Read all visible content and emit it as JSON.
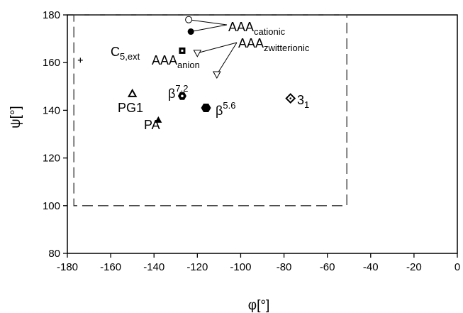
{
  "chart_data": {
    "type": "scatter",
    "xlabel": "φ[°]",
    "ylabel": "ψ[°]",
    "xlim": [
      -180,
      0
    ],
    "ylim": [
      80,
      180
    ],
    "x_ticks": [
      "-180",
      "-160",
      "-140",
      "-120",
      "-100",
      "-80",
      "-60",
      "-40",
      "-20",
      "0"
    ],
    "y_ticks": [
      "80",
      "100",
      "120",
      "140",
      "160",
      "180"
    ],
    "grid": false,
    "region": {
      "style": "dashed",
      "x": [
        -177,
        -51
      ],
      "y": [
        100,
        180
      ]
    },
    "points": [
      {
        "x": -124,
        "y": 178,
        "marker": "circle-open"
      },
      {
        "x": -123,
        "y": 173,
        "marker": "circle"
      },
      {
        "x": -127,
        "y": 165,
        "marker": "square-dot"
      },
      {
        "x": -120,
        "y": 164,
        "marker": "triangle-down-open"
      },
      {
        "x": -111,
        "y": 155,
        "marker": "triangle-down-open"
      },
      {
        "x": -150,
        "y": 147,
        "marker": "triangle-open"
      },
      {
        "x": -127,
        "y": 146,
        "marker": "hexagon-dot"
      },
      {
        "x": -116,
        "y": 141,
        "marker": "hexagon"
      },
      {
        "x": -77,
        "y": 145,
        "marker": "diamond-dot"
      },
      {
        "x": -138,
        "y": 136,
        "marker": "triangle"
      },
      {
        "x": -174,
        "y": 161,
        "marker": "plus"
      }
    ],
    "labels": [
      {
        "main": "AAA",
        "sub": "cationic"
      },
      {
        "main": "AAA",
        "sub": "zwitterionic"
      },
      {
        "main": "AAA",
        "sub": "anion"
      },
      {
        "main": "C",
        "sub": "5,ext"
      },
      {
        "main": "PG1",
        "sub": ""
      },
      {
        "main": "PA",
        "sub": ""
      },
      {
        "main": "β",
        "sup": "7.2"
      },
      {
        "main": "β",
        "sup": "5.6"
      },
      {
        "main": "3",
        "sub": "1"
      }
    ]
  }
}
